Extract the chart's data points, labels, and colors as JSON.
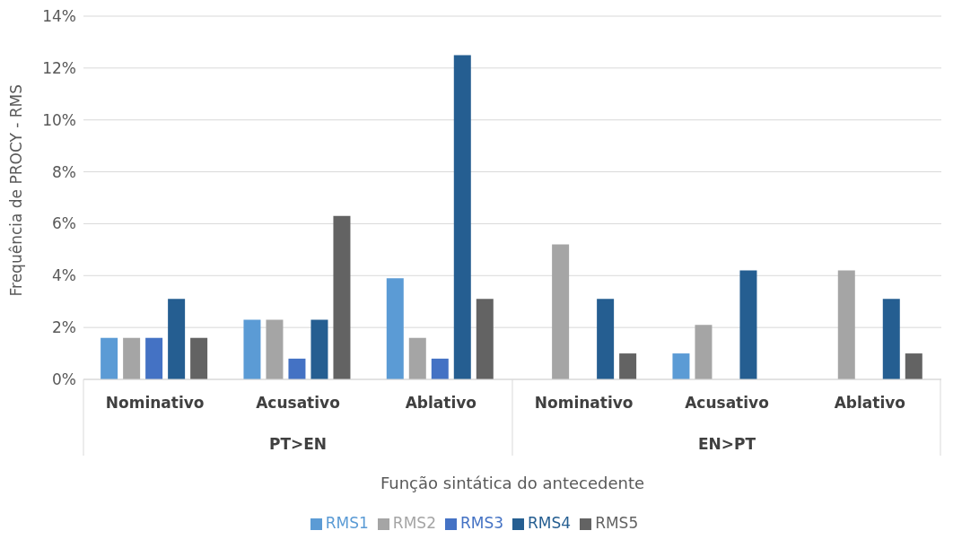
{
  "chart_data": {
    "type": "bar",
    "xlabel": "Função sintática do antecedente",
    "ylabel": "Frequência de PROCY - RMS",
    "categories": [
      "Nominativo",
      "Acusativo",
      "Ablativo",
      "Nominativo",
      "Acusativo",
      "Ablativo"
    ],
    "annotations": [
      "PT>EN",
      "EN>PT"
    ],
    "series": [
      {
        "name": "RMS1",
        "color": "#5b9bd5",
        "values": [
          1.6,
          2.3,
          3.9,
          0,
          1.0,
          0
        ]
      },
      {
        "name": "RMS2",
        "color": "#a5a5a5",
        "values": [
          1.6,
          2.3,
          1.6,
          5.2,
          2.1,
          4.2
        ]
      },
      {
        "name": "RMS3",
        "color": "#4472c4",
        "values": [
          1.6,
          0.8,
          0.8,
          0,
          0,
          0
        ]
      },
      {
        "name": "RMS4",
        "color": "#255e91",
        "values": [
          3.1,
          2.3,
          12.5,
          3.1,
          4.2,
          3.1
        ]
      },
      {
        "name": "RMS5",
        "color": "#636363",
        "values": [
          1.6,
          6.3,
          3.1,
          1.0,
          0,
          1.0
        ]
      }
    ],
    "ylim": [
      0,
      14
    ],
    "yticks": [
      {
        "value": 0,
        "label": "0%"
      },
      {
        "value": 2,
        "label": "2%"
      },
      {
        "value": 4,
        "label": "4%"
      },
      {
        "value": 6,
        "label": "6%"
      },
      {
        "value": 8,
        "label": "8%"
      },
      {
        "value": 10,
        "label": "10%"
      },
      {
        "value": 12,
        "label": "12%"
      },
      {
        "value": 14,
        "label": "14%"
      }
    ],
    "grid": "y",
    "legend": "bottom"
  }
}
